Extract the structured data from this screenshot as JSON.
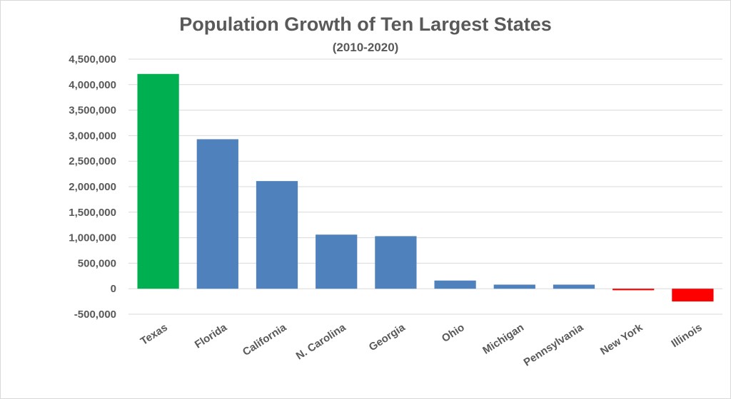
{
  "chart_data": {
    "type": "bar",
    "title": "Population Growth of Ten Largest States",
    "subtitle": "(2010-2020)",
    "xlabel": "",
    "ylabel": "",
    "categories": [
      "Texas",
      "Florida",
      "California",
      "N. Carolina",
      "Georgia",
      "Ohio",
      "Michigan",
      "Pennsylvania",
      "New York",
      "Illinois"
    ],
    "values": [
      4210000,
      2930000,
      2110000,
      1060000,
      1030000,
      160000,
      80000,
      80000,
      -30000,
      -250000
    ],
    "bar_colors": [
      "#00b050",
      "#4f81bd",
      "#4f81bd",
      "#4f81bd",
      "#4f81bd",
      "#4f81bd",
      "#4f81bd",
      "#4f81bd",
      "#ff0000",
      "#ff0000"
    ],
    "ylim": [
      -500000,
      4500000
    ],
    "yticks": [
      4500000,
      4000000,
      3500000,
      3000000,
      2500000,
      2000000,
      1500000,
      1000000,
      500000,
      0,
      -500000
    ],
    "ytick_labels": [
      "4,500,000",
      "4,000,000",
      "3,500,000",
      "3,000,000",
      "2,500,000",
      "2,000,000",
      "1,500,000",
      "1,000,000",
      "500,000",
      "0",
      "-500,000"
    ],
    "grid": true,
    "legend": "none"
  }
}
